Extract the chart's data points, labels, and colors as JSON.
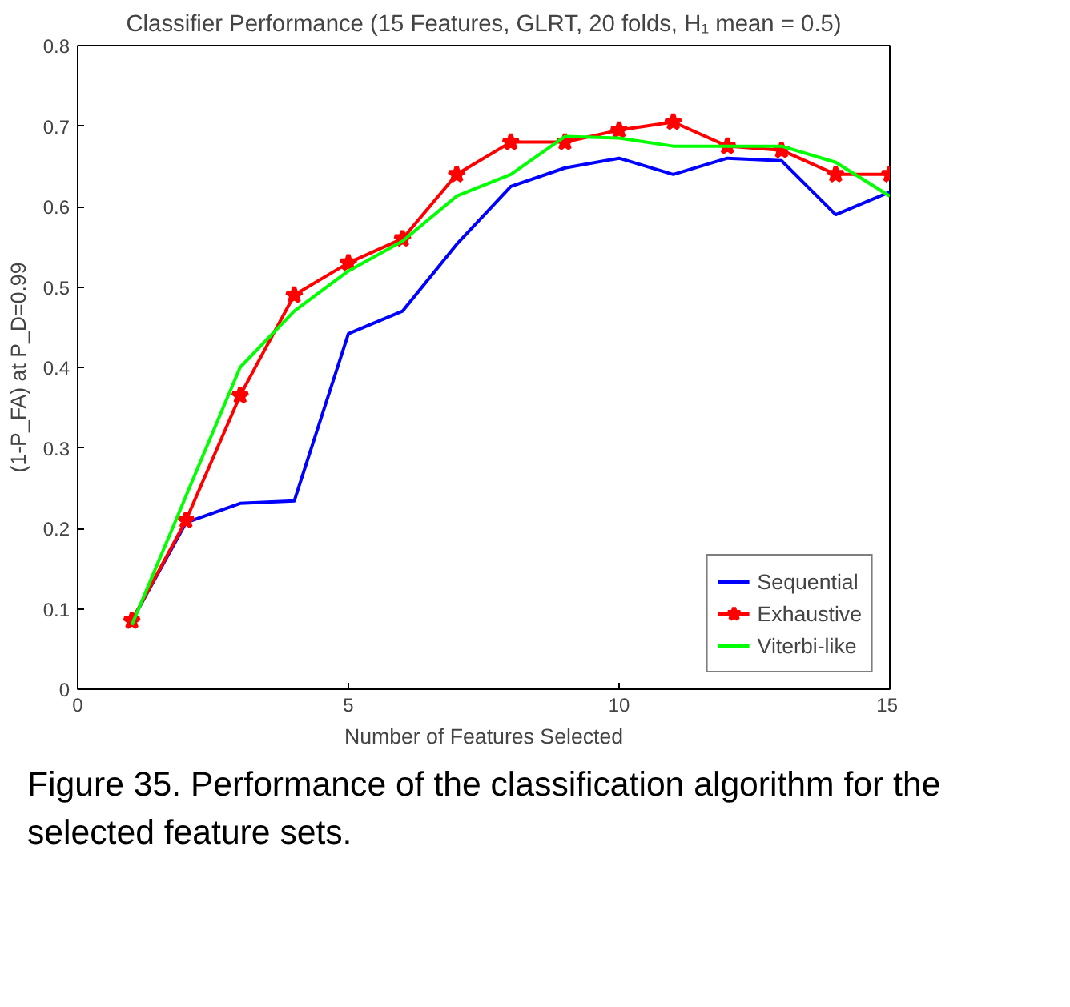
{
  "chart_data": {
    "type": "line",
    "title": "Classifier Performance (15 Features, GLRT, 20 folds, H₁ mean = 0.5)",
    "xlabel": "Number of Features Selected",
    "ylabel": "(1-P_FA) at P_D=0.99",
    "x": [
      1,
      2,
      3,
      4,
      5,
      6,
      7,
      8,
      9,
      10,
      11,
      12,
      13,
      14,
      15
    ],
    "series": [
      {
        "name": "Sequential",
        "color": "#0000ff",
        "marker": "none",
        "values": [
          0.085,
          0.207,
          0.231,
          0.234,
          0.442,
          0.47,
          0.553,
          0.625,
          0.648,
          0.66,
          0.64,
          0.66,
          0.657,
          0.59,
          0.618
        ]
      },
      {
        "name": "Exhaustive",
        "color": "#ff0000",
        "marker": "star",
        "values": [
          0.085,
          0.21,
          0.365,
          0.49,
          0.53,
          0.56,
          0.64,
          0.68,
          0.68,
          0.695,
          0.705,
          0.675,
          0.67,
          0.64,
          0.64
        ]
      },
      {
        "name": "Viterbi-like",
        "color": "#00ff00",
        "marker": "none",
        "values": [
          0.08,
          0.24,
          0.4,
          0.47,
          0.52,
          0.557,
          0.613,
          0.64,
          0.687,
          0.685,
          0.675,
          0.675,
          0.675,
          0.655,
          0.613
        ]
      }
    ],
    "xlim": [
      0,
      15
    ],
    "xticks": [
      0,
      5,
      10,
      15
    ],
    "ylim": [
      0,
      0.8
    ],
    "yticks": [
      0,
      0.1,
      0.2,
      0.3,
      0.4,
      0.5,
      0.6,
      0.7,
      0.8
    ],
    "grid": false,
    "legend": "bottom right",
    "line_style": "solid",
    "annotations": [
      "Figure 35.  Performance of the classification algorithm for the selected feature sets."
    ]
  }
}
